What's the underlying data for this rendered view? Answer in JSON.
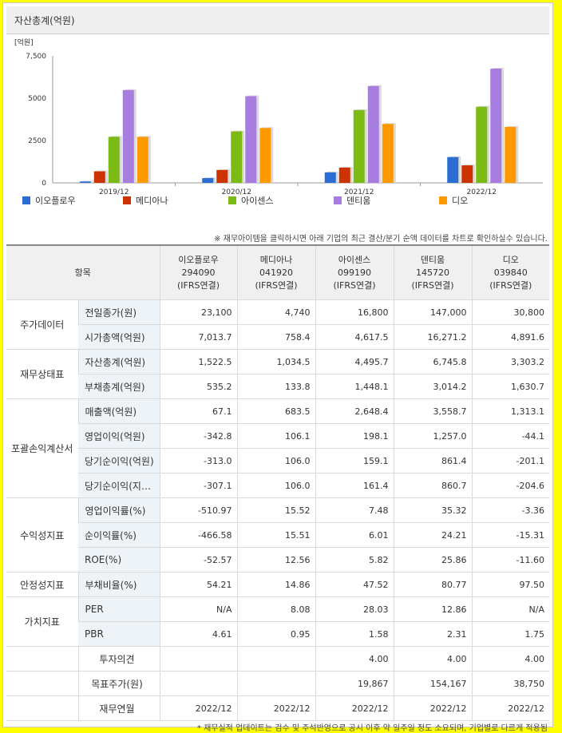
{
  "chart_data": {
    "type": "bar",
    "title": "자산총계(억원)",
    "unit_label": "[억원]",
    "categories": [
      "2019/12",
      "2020/12",
      "2021/12",
      "2022/12"
    ],
    "yticks": [
      "7,500",
      "5000",
      "2500",
      "0"
    ],
    "ytick_values": [
      7500,
      5000,
      2500,
      0
    ],
    "ylim": [
      0,
      7500
    ],
    "series": [
      {
        "name": "이오플로우",
        "color": "#2a6ed3",
        "values": [
          80,
          280,
          620,
          1522.5
        ]
      },
      {
        "name": "메디아나",
        "color": "#cc3300",
        "values": [
          680,
          760,
          900,
          1034.5
        ]
      },
      {
        "name": "아이센스",
        "color": "#7cbb15",
        "values": [
          2720,
          3040,
          4300,
          4495.7
        ]
      },
      {
        "name": "덴티움",
        "color": "#a87de0",
        "values": [
          5480,
          5120,
          5720,
          6745.8
        ]
      },
      {
        "name": "디오",
        "color": "#ff9900",
        "values": [
          2720,
          3240,
          3480,
          3303.2
        ]
      }
    ],
    "legend_position": "bottom",
    "grid": false
  },
  "note_top": "※ 재무아이템을 클릭하시면 아래 기업의 최근 결산/분기 순액 데이터를 차트로 확인하실수 있습니다.",
  "table": {
    "header_label": "항목",
    "companies": [
      {
        "name": "이오플로우",
        "code": "294090",
        "basis": "(IFRS연결)"
      },
      {
        "name": "메디아나",
        "code": "041920",
        "basis": "(IFRS연결)"
      },
      {
        "name": "아이센스",
        "code": "099190",
        "basis": "(IFRS연결)"
      },
      {
        "name": "덴티움",
        "code": "145720",
        "basis": "(IFRS연결)"
      },
      {
        "name": "디오",
        "code": "039840",
        "basis": "(IFRS연결)"
      }
    ],
    "groups": [
      {
        "category": "주가데이터",
        "rows": [
          {
            "label": "전일종가(원)",
            "values": [
              "23,100",
              "4,740",
              "16,800",
              "147,000",
              "30,800"
            ]
          },
          {
            "label": "시가총액(억원)",
            "values": [
              "7,013.7",
              "758.4",
              "4,617.5",
              "16,271.2",
              "4,891.6"
            ]
          }
        ]
      },
      {
        "category": "재무상태표",
        "rows": [
          {
            "label": "자산총계(억원)",
            "values": [
              "1,522.5",
              "1,034.5",
              "4,495.7",
              "6,745.8",
              "3,303.2"
            ]
          },
          {
            "label": "부채총계(억원)",
            "values": [
              "535.2",
              "133.8",
              "1,448.1",
              "3,014.2",
              "1,630.7"
            ]
          }
        ]
      },
      {
        "category": "포괄손익계산서",
        "rows": [
          {
            "label": "매출액(억원)",
            "values": [
              "67.1",
              "683.5",
              "2,648.4",
              "3,558.7",
              "1,313.1"
            ]
          },
          {
            "label": "영업이익(억원)",
            "values": [
              "-342.8",
              "106.1",
              "198.1",
              "1,257.0",
              "-44.1"
            ]
          },
          {
            "label": "당기순이익(억원)",
            "values": [
              "-313.0",
              "106.0",
              "159.1",
              "861.4",
              "-201.1"
            ]
          },
          {
            "label": "당기순이익(지배)(억원)",
            "values": [
              "-307.1",
              "106.0",
              "161.4",
              "860.7",
              "-204.6"
            ]
          }
        ]
      },
      {
        "category": "수익성지표",
        "rows": [
          {
            "label": "영업이익률(%)",
            "values": [
              "-510.97",
              "15.52",
              "7.48",
              "35.32",
              "-3.36"
            ]
          },
          {
            "label": "순이익률(%)",
            "values": [
              "-466.58",
              "15.51",
              "6.01",
              "24.21",
              "-15.31"
            ]
          },
          {
            "label": "ROE(%)",
            "values": [
              "-52.57",
              "12.56",
              "5.82",
              "25.86",
              "-11.60"
            ]
          }
        ]
      },
      {
        "category": "안정성지표",
        "rows": [
          {
            "label": "부채비율(%)",
            "values": [
              "54.21",
              "14.86",
              "47.52",
              "80.77",
              "97.50"
            ]
          }
        ]
      },
      {
        "category": "가치지표",
        "rows": [
          {
            "label": "PER",
            "values": [
              "N/A",
              "8.08",
              "28.03",
              "12.86",
              "N/A"
            ]
          },
          {
            "label": "PBR",
            "values": [
              "4.61",
              "0.95",
              "1.58",
              "2.31",
              "1.75"
            ]
          }
        ]
      }
    ],
    "extra_rows": [
      {
        "label": "투자의견",
        "values": [
          "",
          "",
          "4.00",
          "4.00",
          "4.00"
        ]
      },
      {
        "label": "목표주가(원)",
        "values": [
          "",
          "",
          "19,867",
          "154,167",
          "38,750"
        ]
      },
      {
        "label": "재무연월",
        "values": [
          "2022/12",
          "2022/12",
          "2022/12",
          "2022/12",
          "2022/12"
        ]
      }
    ]
  },
  "note_bottom": "* 재무실적 업데이트는 검수 및 주석반영으로 공시 이후 약 일주일 정도 소요되며, 기업별로 다르게 적용됨"
}
